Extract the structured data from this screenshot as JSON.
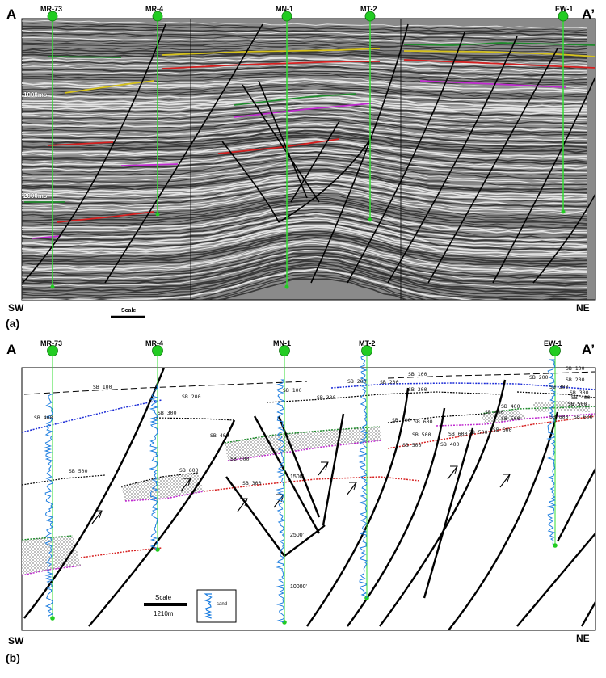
{
  "panel_a": {
    "label": "(a)",
    "left_end": "A",
    "right_end": "A’",
    "sw": "SW",
    "ne": "NE",
    "scale": "Scale",
    "time_marks": [
      "1000ms",
      "2000ms"
    ],
    "wells": [
      "MR-73",
      "MR-4",
      "MN-1",
      "MT-2",
      "EW-1"
    ]
  },
  "panel_b": {
    "label": "(b)",
    "left_end": "A",
    "right_end": "A’",
    "sw": "SW",
    "ne": "NE",
    "scale": "Scale",
    "scale_length": "1210m",
    "legend_sand": "sand",
    "wells": [
      "MR-73",
      "MR-4",
      "MN-1",
      "MT-2",
      "EW-1"
    ],
    "depth_marks": [
      "1500'",
      "2500'",
      "10000'"
    ],
    "sequence_labels": [
      "SB 100",
      "SB 200",
      "SB 300",
      "SB 400",
      "SB 500",
      "SB 600",
      "SB 100",
      "SB 200",
      "SB 300",
      "SB 400",
      "SB 500",
      "SB 600",
      "SB 300",
      "SB 400",
      "SB 500",
      "SB 400",
      "SB 500",
      "SB 600",
      "SB 200",
      "SB 300",
      "SB 100",
      "SB 200",
      "SB 300",
      "SB 400",
      "SB 500",
      "SB 600",
      "SB 400",
      "SB 500",
      "SB 600",
      "SB 100",
      "SB 200",
      "SB 300",
      "SB 400",
      "SB 500",
      "SB 600"
    ]
  },
  "colors": {
    "well_line": "#33dd33",
    "well_head": "#22cc22",
    "horizon_green": "#1f8a2c",
    "horizon_yellow": "#d6c21c",
    "horizon_red": "#d62020",
    "horizon_magenta": "#c02ad0",
    "horizon_blue": "#1a2ad6",
    "horizon_black": "#000000",
    "log_blue": "#1f7fe0"
  }
}
